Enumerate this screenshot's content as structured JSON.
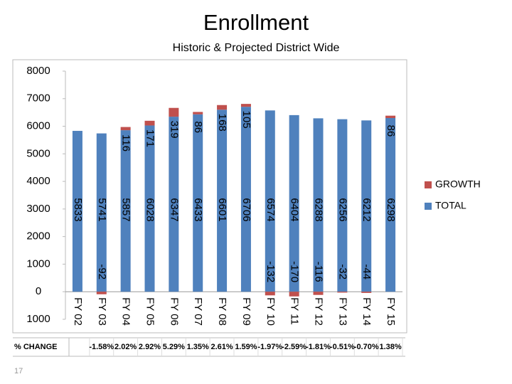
{
  "chart_data": {
    "type": "stacked_bar",
    "title": "Enrollment",
    "subtitle": "Historic & Projected District Wide",
    "categories": [
      "FY 02",
      "FY 03",
      "FY 04",
      "FY 05",
      "FY 06",
      "FY 07",
      "FY 08",
      "FY 09",
      "FY 10",
      "FY 11",
      "FY 12",
      "FY 13",
      "FY 14",
      "FY 15"
    ],
    "series": [
      {
        "name": "TOTAL",
        "color": "#4f81bd",
        "values": [
          5833,
          5741,
          5857,
          6028,
          6347,
          6433,
          6601,
          6706,
          6574,
          6404,
          6288,
          6256,
          6212,
          6298
        ]
      },
      {
        "name": "GROWTH",
        "color": "#c0504d",
        "values": [
          null,
          -92,
          116,
          171,
          319,
          86,
          168,
          105,
          -132,
          -170,
          -116,
          -32,
          -44,
          86
        ]
      }
    ],
    "ylim": [
      -1000,
      8000
    ],
    "yticks": [
      {
        "value": -1000,
        "label": "1000"
      },
      0,
      1000,
      2000,
      3000,
      4000,
      5000,
      6000,
      7000,
      8000
    ],
    "grid": false,
    "legend": "right",
    "change_row": {
      "header": "% CHANGE",
      "cells": [
        null,
        "-1.58%",
        "2.02%",
        "2.92%",
        "5.29%",
        "1.35%",
        "2.61%",
        "1.59%",
        "-1.97%",
        "-2.59%",
        "-1.81%",
        "-0.51%",
        "-0.70%",
        "1.38%"
      ]
    },
    "page_number": "17"
  }
}
